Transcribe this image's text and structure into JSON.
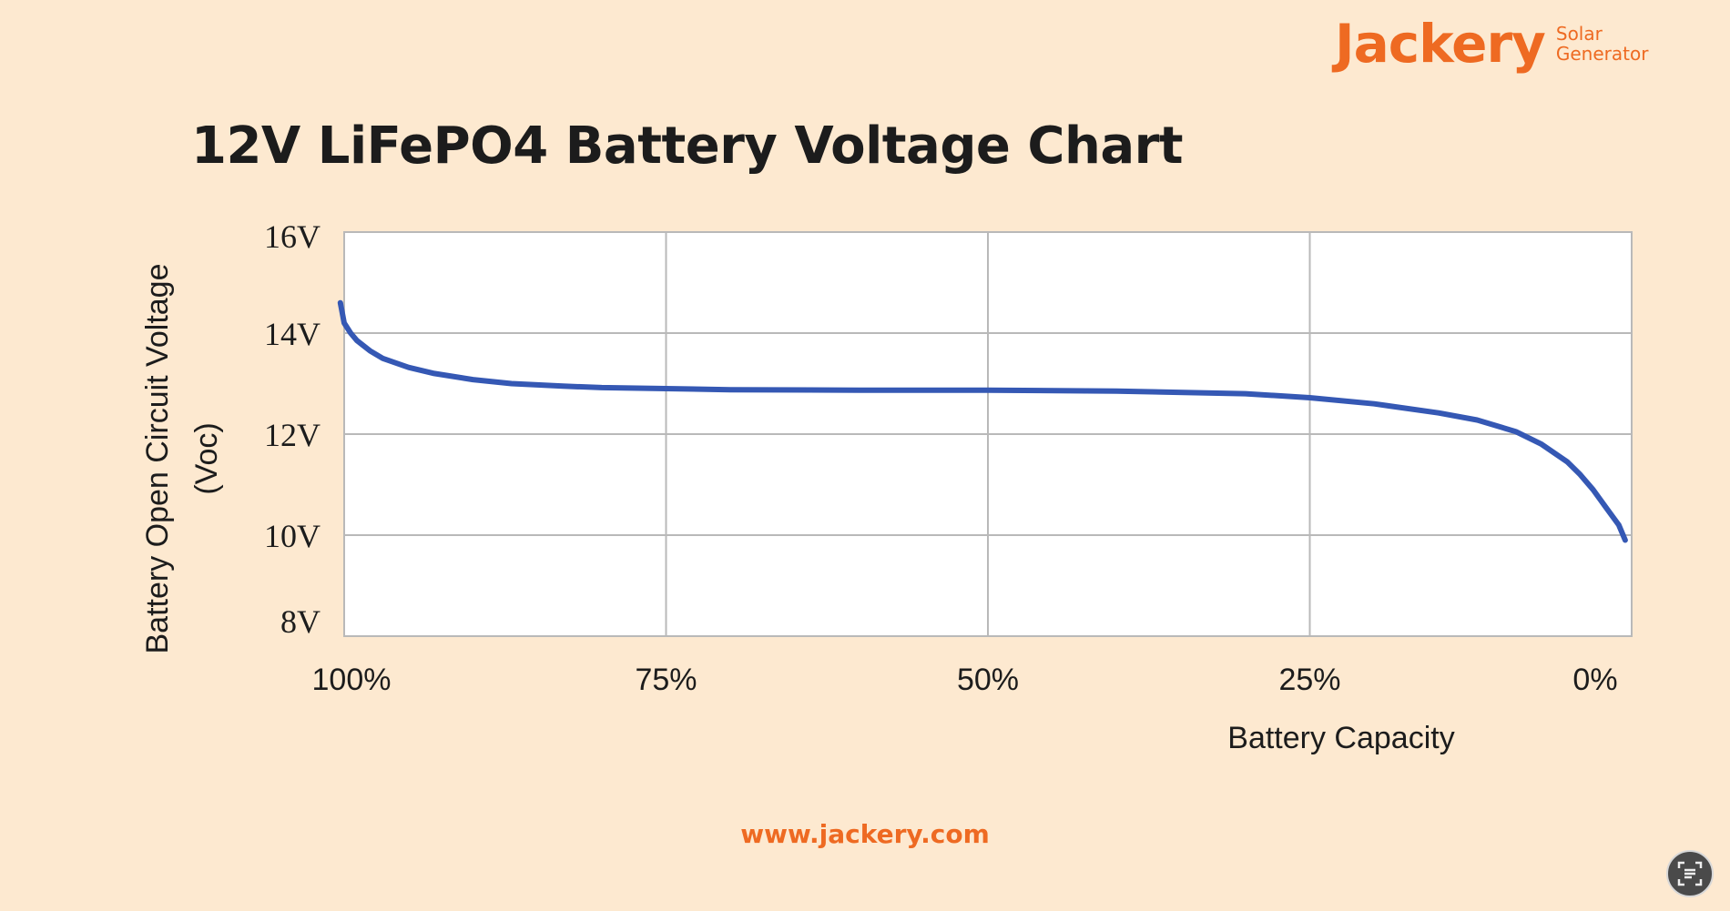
{
  "brand": {
    "name": "Jackery",
    "tagline_line1": "Solar",
    "tagline_line2": "Generator"
  },
  "footer": {
    "url": "www.jackery.com"
  },
  "colors": {
    "accent": "#ee6a22",
    "line": "#3558b4",
    "background": "#fde9d0",
    "grid": "#b9b9b9"
  },
  "chart_data": {
    "type": "line",
    "title": "12V LiFePO4 Battery Voltage Chart",
    "xlabel": "Battery Capacity",
    "ylabel_line1": "Battery Open Circuit Voltage",
    "ylabel_line2": "(Voc)",
    "x_reversed": true,
    "xlim": [
      100,
      0
    ],
    "ylim": [
      8,
      16
    ],
    "x_ticks": [
      100,
      75,
      50,
      25,
      0
    ],
    "x_tick_labels": [
      "100%",
      "75%",
      "50%",
      "25%",
      "0%"
    ],
    "y_ticks": [
      16,
      14,
      12,
      10,
      8
    ],
    "y_tick_labels": [
      "16V",
      "14V",
      "12V",
      "10V",
      "8V"
    ],
    "grid": true,
    "series": [
      {
        "x": [
          100.3,
          100,
          99.5,
          99,
          98,
          97,
          95,
          93,
          90,
          87,
          83,
          80,
          75,
          70,
          60,
          50,
          40,
          30,
          25,
          20,
          15,
          12,
          9,
          7,
          5,
          4,
          3,
          2,
          1,
          0.5
        ],
        "y": [
          14.6,
          14.2,
          14.0,
          13.85,
          13.65,
          13.5,
          13.32,
          13.2,
          13.08,
          13.0,
          12.95,
          12.92,
          12.9,
          12.88,
          12.87,
          12.87,
          12.85,
          12.8,
          12.72,
          12.6,
          12.42,
          12.28,
          12.05,
          11.8,
          11.45,
          11.2,
          10.9,
          10.55,
          10.2,
          9.9
        ]
      }
    ]
  }
}
